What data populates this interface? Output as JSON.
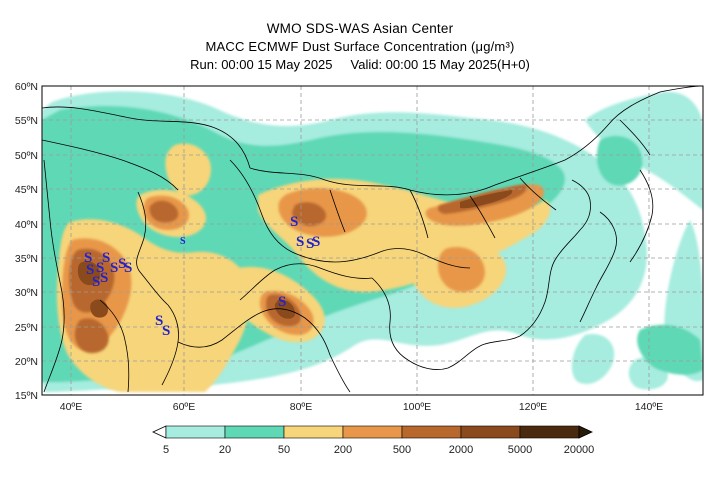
{
  "header": {
    "title": "WMO SDS-WAS Asian Center",
    "subtitle": "MACC ECMWF Dust Surface Concentration (μg/m³)",
    "run_label": "Run: 00:00 15 May 2025",
    "valid_label": "Valid: 00:00 15 May 2025(H+0)"
  },
  "map": {
    "lon_range": [
      35,
      150
    ],
    "lat_range": [
      15,
      60
    ],
    "lat_ticks": [
      "60ºN",
      "55ºN",
      "50ºN",
      "45ºN",
      "40ºN",
      "35ºN",
      "30ºN",
      "25ºN",
      "20ºN",
      "15ºN"
    ],
    "lon_ticks": [
      "40ºE",
      "60ºE",
      "80ºE",
      "100ºE",
      "120ºE",
      "140ºE"
    ],
    "storm_symbol": "S",
    "storm_color": "#2222cc",
    "storm_count": 17
  },
  "colorbar": {
    "labels": [
      "5",
      "20",
      "50",
      "200",
      "500",
      "2000",
      "5000",
      "20000"
    ],
    "colors": [
      "#a6ecdf",
      "#5fd8b5",
      "#f7d57a",
      "#e8974a",
      "#b8682d",
      "#8a4a1c",
      "#4a2a0f"
    ]
  }
}
